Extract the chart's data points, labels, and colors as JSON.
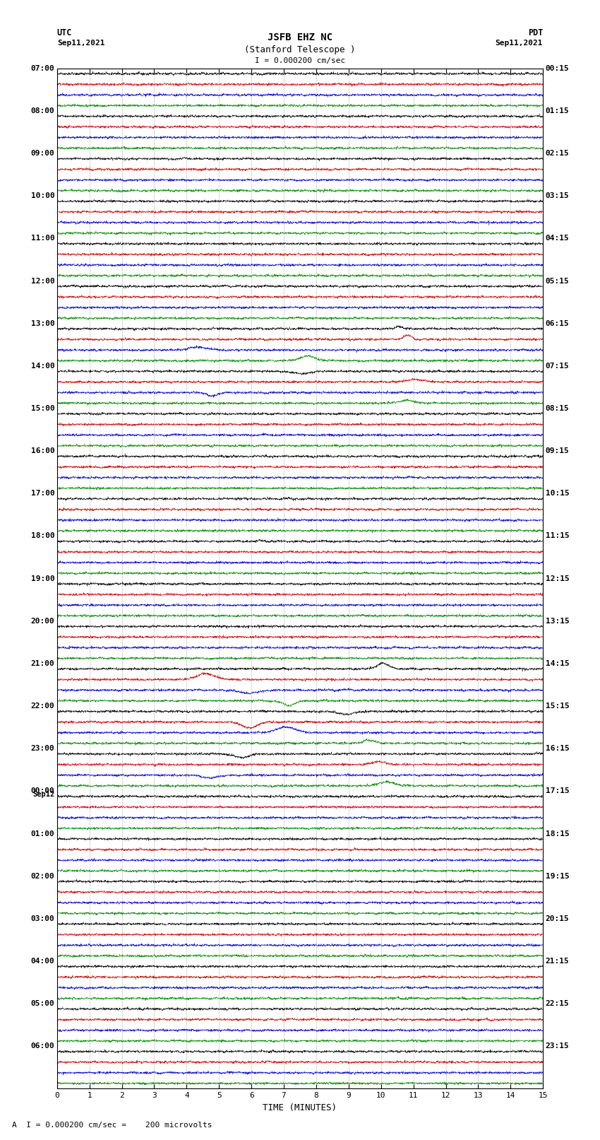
{
  "title_line1": "JSFB EHZ NC",
  "title_line2": "(Stanford Telescope )",
  "scale_label": "I = 0.000200 cm/sec",
  "footer_label": "A  I = 0.000200 cm/sec =    200 microvolts",
  "utc_label": "UTC",
  "utc_date": "Sep11,2021",
  "pdt_label": "PDT",
  "pdt_date": "Sep11,2021",
  "xlabel": "TIME (MINUTES)",
  "bg_color": "#ffffff",
  "trace_colors": [
    "#000000",
    "#cc0000",
    "#0000cc",
    "#008800"
  ],
  "left_times": [
    "07:00",
    "08:00",
    "09:00",
    "10:00",
    "11:00",
    "12:00",
    "13:00",
    "14:00",
    "15:00",
    "16:00",
    "17:00",
    "18:00",
    "19:00",
    "20:00",
    "21:00",
    "22:00",
    "23:00",
    "Sep12",
    "00:00",
    "01:00",
    "02:00",
    "03:00",
    "04:00",
    "05:00",
    "06:00"
  ],
  "right_times": [
    "00:15",
    "01:15",
    "02:15",
    "03:15",
    "04:15",
    "05:15",
    "06:15",
    "07:15",
    "08:15",
    "09:15",
    "10:15",
    "11:15",
    "12:15",
    "13:15",
    "14:15",
    "15:15",
    "16:15",
    "17:15",
    "18:15",
    "19:15",
    "20:15",
    "21:15",
    "22:15",
    "23:15"
  ],
  "n_rows": 24,
  "traces_per_row": 4,
  "minutes": 15,
  "xmin": 0,
  "xmax": 15,
  "xticks": [
    0,
    1,
    2,
    3,
    4,
    5,
    6,
    7,
    8,
    9,
    10,
    11,
    12,
    13,
    14,
    15
  ],
  "samples_per_minute": 200,
  "base_noise_amp": 0.12,
  "amplitude_scale": 0.42
}
